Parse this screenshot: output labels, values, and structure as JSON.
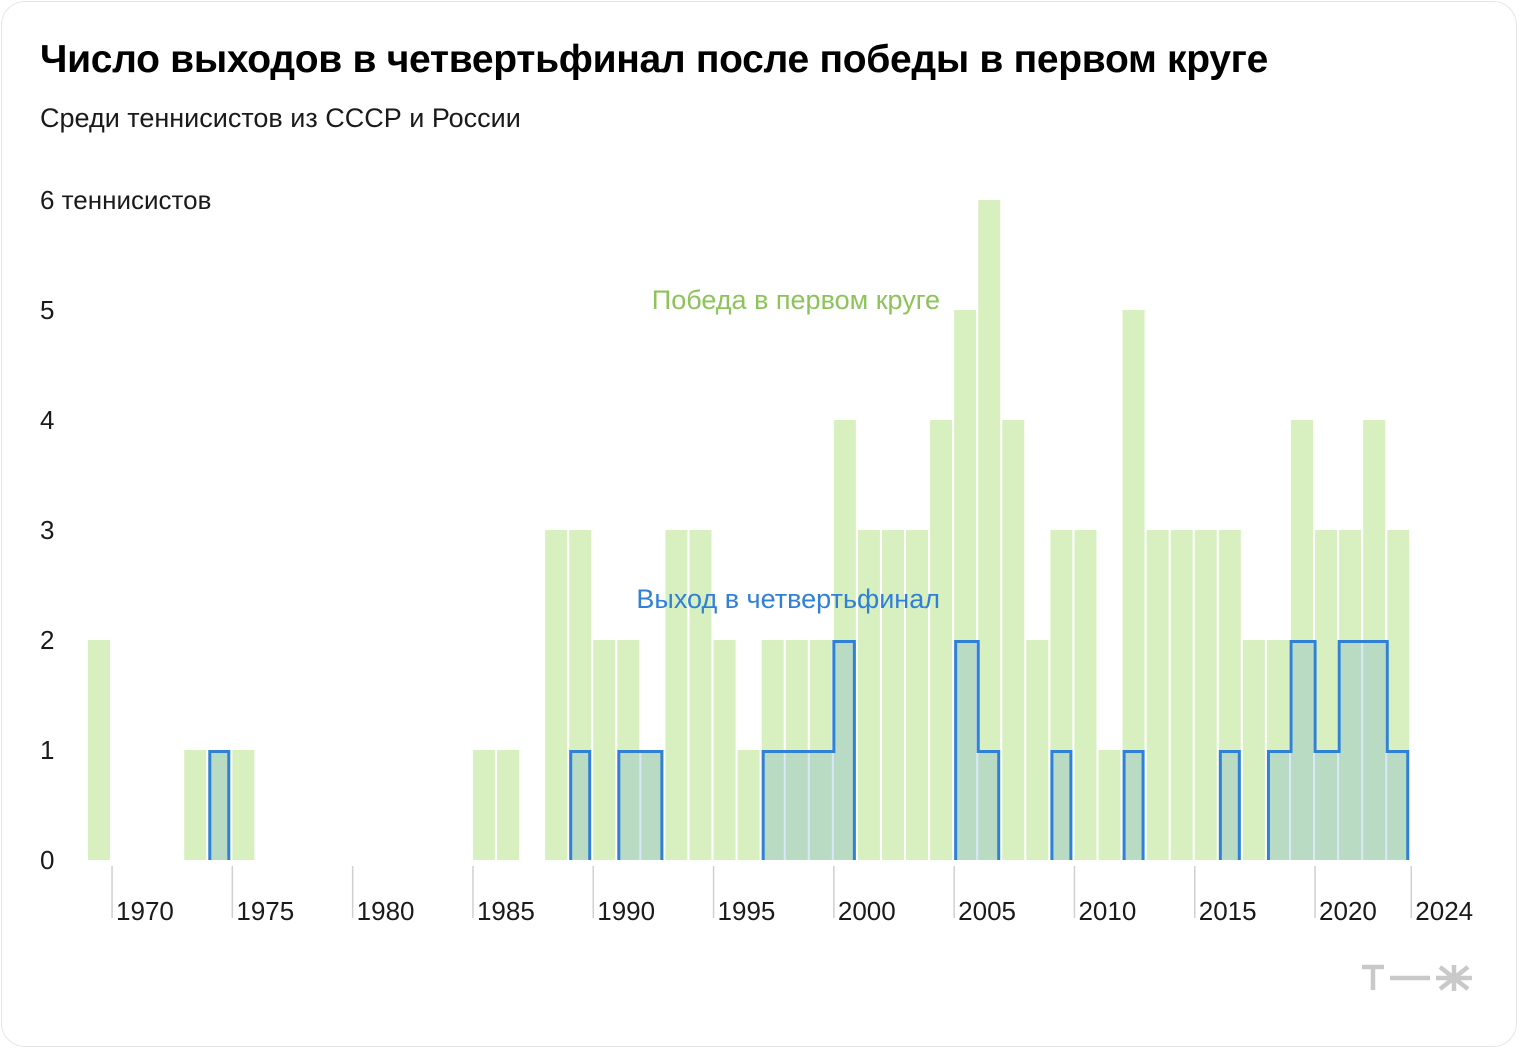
{
  "header": {
    "title": "Число выходов в четвертьфинал после победы в первом круге",
    "subtitle": "Среди теннисистов из СССР и России"
  },
  "chart_data": {
    "type": "bar",
    "title": "Число выходов в четвертьфинал после победы в первом круге",
    "subtitle": "Среди теннисистов из СССР и России",
    "ylabel": "теннисистов",
    "ylim": [
      0,
      6
    ],
    "yticks": [
      "0",
      "1",
      "2",
      "3",
      "4",
      "5",
      "6 теннисистов"
    ],
    "xlim": [
      1969,
      2024
    ],
    "xticks": [
      "1970",
      "1975",
      "1980",
      "1985",
      "1990",
      "1995",
      "2000",
      "2005",
      "2010",
      "2015",
      "2020",
      "2024"
    ],
    "x": [
      1969,
      1970,
      1971,
      1972,
      1973,
      1974,
      1975,
      1976,
      1977,
      1978,
      1979,
      1980,
      1981,
      1982,
      1983,
      1984,
      1985,
      1986,
      1987,
      1988,
      1989,
      1990,
      1991,
      1992,
      1993,
      1994,
      1995,
      1996,
      1997,
      1998,
      1999,
      2000,
      2001,
      2002,
      2003,
      2004,
      2005,
      2006,
      2007,
      2008,
      2009,
      2010,
      2011,
      2012,
      2013,
      2014,
      2015,
      2016,
      2017,
      2018,
      2019,
      2020,
      2021,
      2022,
      2023
    ],
    "series": [
      {
        "name": "Победа в первом круге",
        "color": "#d8efc0",
        "values": [
          2,
          0,
          0,
          0,
          1,
          1,
          1,
          0,
          0,
          0,
          0,
          0,
          0,
          0,
          0,
          0,
          1,
          1,
          0,
          3,
          3,
          2,
          2,
          1,
          3,
          3,
          2,
          1,
          2,
          2,
          2,
          4,
          3,
          3,
          3,
          4,
          5,
          6,
          4,
          2,
          3,
          3,
          1,
          5,
          3,
          3,
          3,
          3,
          2,
          2,
          4,
          3,
          3,
          4,
          3
        ]
      },
      {
        "name": "Выход в четвертьфинал",
        "color": "#2f80d6",
        "values": [
          0,
          0,
          0,
          0,
          0,
          1,
          0,
          0,
          0,
          0,
          0,
          0,
          0,
          0,
          0,
          0,
          0,
          0,
          0,
          0,
          1,
          0,
          1,
          1,
          0,
          0,
          0,
          0,
          1,
          1,
          1,
          2,
          0,
          0,
          0,
          0,
          2,
          1,
          0,
          0,
          1,
          0,
          0,
          1,
          0,
          0,
          0,
          1,
          0,
          1,
          2,
          1,
          2,
          2,
          1
        ]
      }
    ],
    "legend": "inline annotations",
    "grid": false
  },
  "brand": {
    "logo": "т—ж"
  }
}
